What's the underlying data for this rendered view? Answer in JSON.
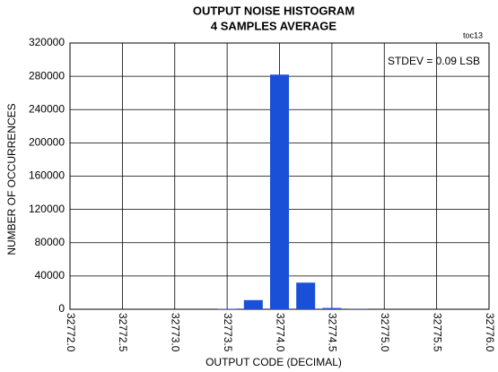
{
  "chart_data": {
    "type": "bar",
    "title": "OUTPUT NOISE HISTOGRAM",
    "subtitle": "4 SAMPLES AVERAGE",
    "tag": "toc13",
    "annotation": "STDEV = 0.09 LSB",
    "x_label": "OUTPUT CODE (DECIMAL)",
    "y_label": "NUMBER OF OCCURRENCES",
    "x": [
      32773.5,
      32773.75,
      32774.0,
      32774.25,
      32774.5,
      32774.75
    ],
    "values": [
      500,
      11000,
      282000,
      32000,
      1500,
      300
    ],
    "color": "#1a4fd8",
    "xlim": [
      32772,
      32776
    ],
    "xticks": [
      {
        "value": 32772,
        "label": "32772.0"
      },
      32772.5,
      {
        "value": 32773,
        "label": "32773.0"
      },
      32773.5,
      {
        "value": 32774,
        "label": "32774.0"
      },
      32774.5,
      {
        "value": 32775,
        "label": "32775.0"
      },
      32775.5,
      {
        "value": 32776,
        "label": "32776.0"
      }
    ],
    "ylim": [
      0,
      320000
    ],
    "yticks": [
      0,
      40000,
      80000,
      120000,
      160000,
      200000,
      240000,
      280000,
      320000
    ],
    "grid": true
  }
}
